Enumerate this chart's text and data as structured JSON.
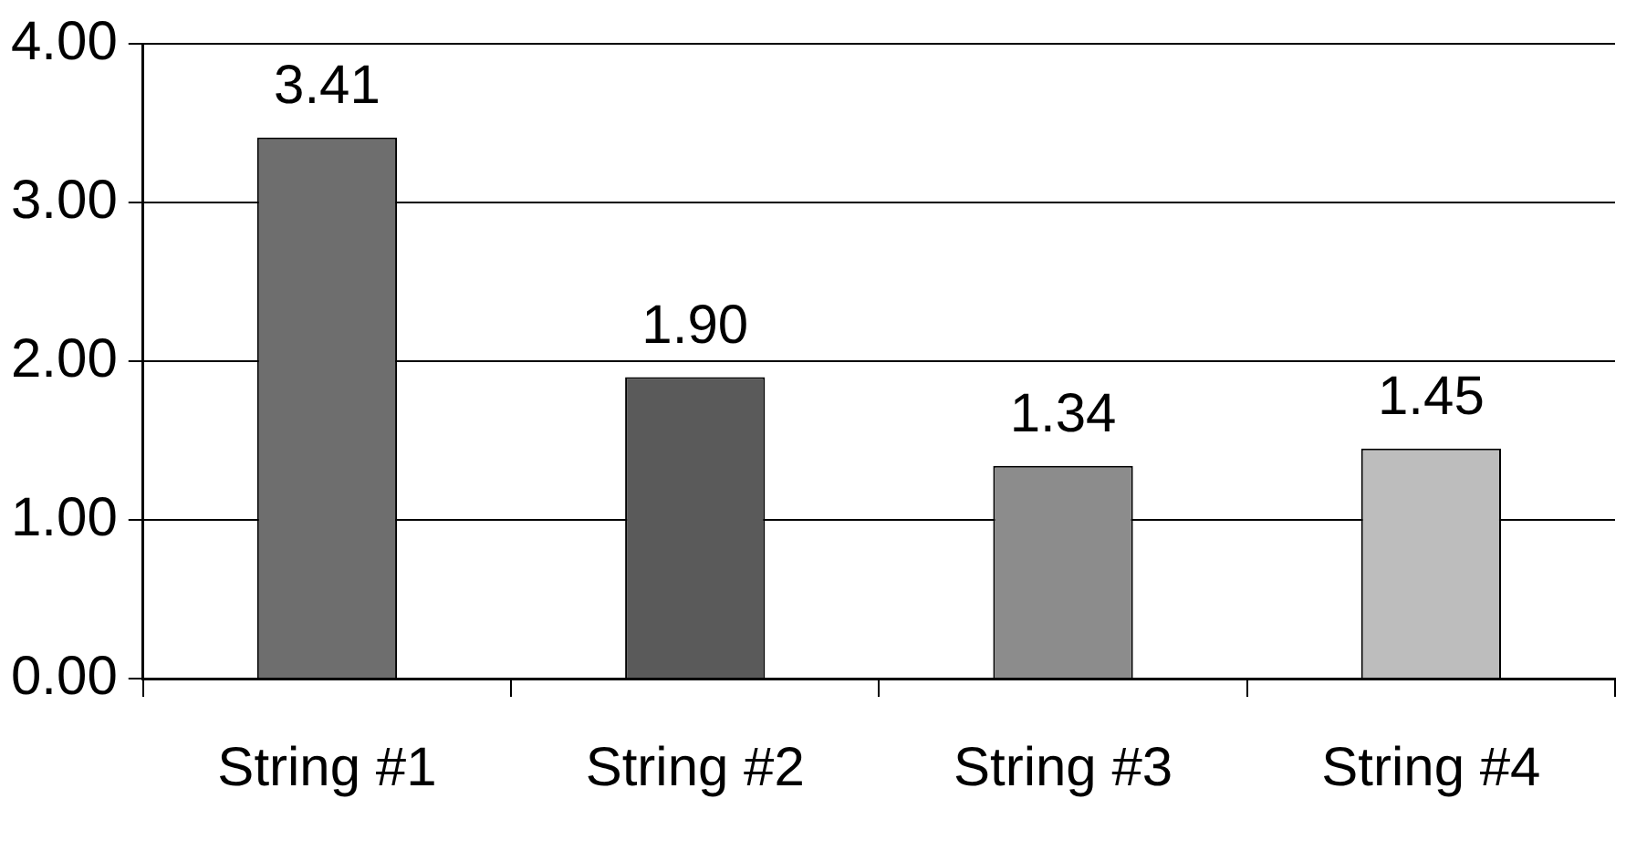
{
  "chart_data": {
    "type": "bar",
    "categories": [
      "String #1",
      "String #2",
      "String #3",
      "String #4"
    ],
    "values": [
      3.41,
      1.9,
      1.34,
      1.45
    ],
    "value_labels": [
      "3.41",
      "1.90",
      "1.34",
      "1.45"
    ],
    "colors": [
      "#6e6e6e",
      "#5a5a5a",
      "#8c8c8c",
      "#bdbdbd"
    ],
    "ylim": [
      0,
      4
    ],
    "yticks": [
      {
        "value": 0,
        "label": "0.00"
      },
      {
        "value": 1,
        "label": "1.00"
      },
      {
        "value": 2,
        "label": "2.00"
      },
      {
        "value": 3,
        "label": "3.00"
      },
      {
        "value": 4,
        "label": "4.00"
      }
    ],
    "grid": "y",
    "legend": false
  }
}
